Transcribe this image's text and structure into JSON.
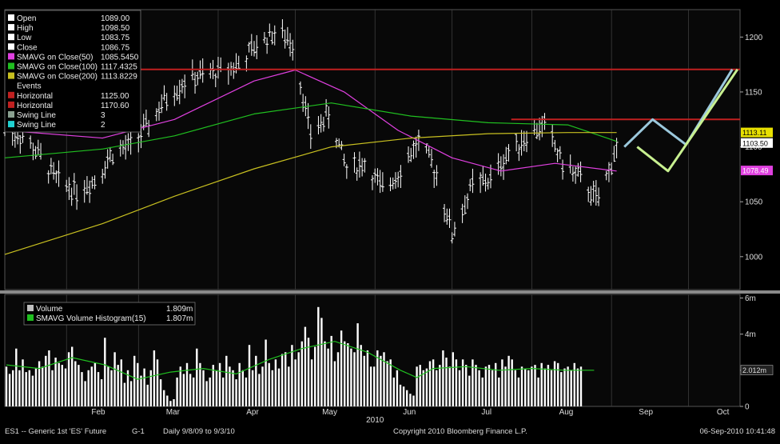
{
  "colors": {
    "price": "#ffffff",
    "sma50": "#e040e0",
    "sma100": "#20c020",
    "sma200": "#c8c020",
    "horizontal": "#c02020",
    "swing1": "#9bc8dc",
    "swing2": "#c8f090",
    "volume": "#ffffff",
    "volsma": "#20c020"
  },
  "legend": {
    "price_items": [
      {
        "label": "Open",
        "value": "1089.00",
        "color": "#ffffff"
      },
      {
        "label": "High",
        "value": "1098.50",
        "color": "#ffffff"
      },
      {
        "label": "Low",
        "value": "1083.75",
        "color": "#ffffff"
      },
      {
        "label": "Close",
        "value": "1086.75",
        "color": "#ffffff"
      },
      {
        "label": "SMAVG on Close(50)",
        "value": "1085.5450",
        "color": "#e040e0"
      },
      {
        "label": "SMAVG on Close(100)",
        "value": "1117.4325",
        "color": "#20c020"
      },
      {
        "label": "SMAVG on Close(200)",
        "value": "1113.8229",
        "color": "#c8c020"
      },
      {
        "label": "Events",
        "value": "",
        "color": ""
      },
      {
        "label": "Horizontal",
        "value": "1125.00",
        "color": "#c02020"
      },
      {
        "label": "Horizontal",
        "value": "1170.60",
        "color": "#c02020"
      },
      {
        "label": "Swing Line",
        "value": "3",
        "color": "#8aa090"
      },
      {
        "label": "Swing Line",
        "value": "2",
        "color": "#20d0d0"
      }
    ],
    "volume_items": [
      {
        "label": "Volume",
        "value": "1.809m",
        "color": "#c0c0c0"
      },
      {
        "label": "SMAVG Volume Histogram(15)",
        "value": "1.807m",
        "color": "#20c020"
      }
    ]
  },
  "price_tags": [
    {
      "value": 1113.11,
      "text": "1113.11",
      "bg": "#e8e000",
      "fg": "#000000"
    },
    {
      "value": 1103.5,
      "text": "1103.50",
      "bg": "#ffffff",
      "fg": "#000000"
    },
    {
      "value": 1078.49,
      "text": "1078.49",
      "bg": "#e040e0",
      "fg": "#ffffff"
    }
  ],
  "volume_tag": {
    "value": 2.012,
    "text": "2.012m"
  },
  "months": [
    "Feb",
    "Mar",
    "Apr",
    "May",
    "Jun",
    "Jul",
    "Aug",
    "Sep",
    "Oct"
  ],
  "year_label": "2010",
  "footer": {
    "left": "ES1 -- Generic 1st 'ES' Future",
    "code": "G-1",
    "range": "Daily  9/8/09 to 9/3/10",
    "copyright": "Copyright 2010 Bloomberg Finance L.P.",
    "date": "06-Sep-2010 10:41:48"
  },
  "chart_data": [
    {
      "type": "line",
      "y_axis": {
        "ticks": [
          1000,
          1050,
          1100,
          1150,
          1200
        ],
        "range": [
          970,
          1225
        ]
      },
      "x_axis": {
        "ticks": [
          "Feb",
          "Mar",
          "Apr",
          "May",
          "Jun",
          "Jul",
          "Aug",
          "Sep",
          "Oct"
        ],
        "range": [
          "2010-01-08",
          "2010-10-21"
        ]
      },
      "ohlc_close_path": [
        [
          "2010-01-08",
          1115
        ],
        [
          "2010-01-15",
          1110
        ],
        [
          "2010-01-22",
          1090
        ],
        [
          "2010-01-28",
          1070
        ],
        [
          "2010-02-05",
          1060
        ],
        [
          "2010-02-12",
          1070
        ],
        [
          "2010-02-19",
          1095
        ],
        [
          "2010-02-26",
          1100
        ],
        [
          "2010-03-05",
          1120
        ],
        [
          "2010-03-12",
          1145
        ],
        [
          "2010-03-19",
          1160
        ],
        [
          "2010-03-26",
          1165
        ],
        [
          "2010-04-01",
          1168
        ],
        [
          "2010-04-09",
          1175
        ],
        [
          "2010-04-16",
          1192
        ],
        [
          "2010-04-23",
          1205
        ],
        [
          "2010-04-30",
          1195
        ],
        [
          "2010-05-07",
          1110
        ],
        [
          "2010-05-14",
          1130
        ],
        [
          "2010-05-21",
          1080
        ],
        [
          "2010-05-28",
          1085
        ],
        [
          "2010-06-04",
          1060
        ],
        [
          "2010-06-11",
          1080
        ],
        [
          "2010-06-18",
          1105
        ],
        [
          "2010-06-25",
          1075
        ],
        [
          "2010-07-01",
          1020
        ],
        [
          "2010-07-09",
          1065
        ],
        [
          "2010-07-16",
          1070
        ],
        [
          "2010-07-23",
          1095
        ],
        [
          "2010-07-30",
          1110
        ],
        [
          "2010-08-06",
          1120
        ],
        [
          "2010-08-13",
          1085
        ],
        [
          "2010-08-20",
          1070
        ],
        [
          "2010-08-27",
          1050
        ],
        [
          "2010-09-03",
          1100
        ]
      ],
      "series": [
        {
          "name": "SMAVG on Close(50)",
          "points": [
            [
              "2010-01-08",
              1115
            ],
            [
              "2010-02-15",
              1108
            ],
            [
              "2010-03-15",
              1125
            ],
            [
              "2010-04-15",
              1160
            ],
            [
              "2010-05-01",
              1170
            ],
            [
              "2010-05-20",
              1150
            ],
            [
              "2010-06-10",
              1115
            ],
            [
              "2010-07-01",
              1090
            ],
            [
              "2010-07-20",
              1078
            ],
            [
              "2010-08-10",
              1085
            ],
            [
              "2010-09-03",
              1078
            ]
          ]
        },
        {
          "name": "SMAVG on Close(100)",
          "points": [
            [
              "2010-01-08",
              1090
            ],
            [
              "2010-02-15",
              1098
            ],
            [
              "2010-03-15",
              1110
            ],
            [
              "2010-04-15",
              1130
            ],
            [
              "2010-05-15",
              1140
            ],
            [
              "2010-06-15",
              1128
            ],
            [
              "2010-07-15",
              1122
            ],
            [
              "2010-08-15",
              1120
            ],
            [
              "2010-09-03",
              1105
            ]
          ]
        },
        {
          "name": "SMAVG on Close(200)",
          "points": [
            [
              "2010-01-08",
              1002
            ],
            [
              "2010-02-15",
              1030
            ],
            [
              "2010-03-15",
              1055
            ],
            [
              "2010-04-15",
              1080
            ],
            [
              "2010-05-15",
              1100
            ],
            [
              "2010-06-15",
              1108
            ],
            [
              "2010-07-15",
              1112
            ],
            [
              "2010-08-15",
              1113
            ],
            [
              "2010-09-03",
              1113
            ]
          ]
        },
        {
          "name": "Horizontal",
          "points": [
            [
              "2010-03-01",
              1170.6
            ],
            [
              "2010-10-21",
              1170.6
            ]
          ]
        },
        {
          "name": "Horizontal",
          "points": [
            [
              "2010-07-24",
              1125
            ],
            [
              "2010-10-21",
              1125
            ]
          ]
        },
        {
          "name": "Swing Line",
          "points": [
            [
              "2010-09-06",
              1100
            ],
            [
              "2010-09-17",
              1125
            ],
            [
              "2010-09-30",
              1102
            ],
            [
              "2010-10-18",
              1170.6
            ]
          ]
        },
        {
          "name": "Swing Line",
          "points": [
            [
              "2010-09-11",
              1100
            ],
            [
              "2010-09-23",
              1078
            ],
            [
              "2010-10-20",
              1170.6
            ]
          ]
        }
      ]
    },
    {
      "type": "bar",
      "y_axis": {
        "ticks": [
          "0",
          "2",
          "4m",
          "6m"
        ],
        "range": [
          0,
          6.2
        ]
      },
      "series": [
        {
          "name": "Volume",
          "values": [
            2.2,
            1.8,
            2.0,
            3.2,
            2.0,
            2.6,
            1.9,
            2.0,
            1.7,
            2.1,
            2.5,
            2.2,
            2.8,
            3.1,
            2.0,
            2.7,
            2.4,
            2.3,
            2.1,
            3.0,
            3.3,
            2.5,
            2.3,
            1.9,
            1.4,
            2.0,
            2.2,
            2.4,
            1.9,
            1.5,
            3.8,
            2.2,
            2.0,
            3.0,
            2.3,
            2.6,
            1.3,
            2.0,
            1.4,
            2.8,
            2.4,
            1.7,
            2.1,
            1.2,
            2.0,
            3.1,
            2.6,
            1.5,
            0.9,
            0.6,
            0.3,
            0.4,
            1.6,
            2.2,
            1.8,
            2.4,
            1.8,
            1.6,
            3.2,
            2.4,
            2.0,
            1.4,
            1.6,
            2.3,
            2.0,
            2.4,
            1.6,
            2.8,
            2.2,
            2.0,
            1.5,
            2.4,
            2.0,
            1.6,
            3.4,
            2.0,
            2.8,
            1.8,
            2.2,
            3.7,
            2.4,
            2.0,
            2.6,
            2.1,
            2.9,
            3.0,
            2.2,
            3.4,
            2.6,
            3.0,
            3.6,
            4.4,
            3.8,
            2.6,
            3.3,
            5.5,
            4.9,
            3.6,
            3.2,
            3.9,
            2.5,
            3.0,
            4.2,
            3.6,
            3.5,
            3.2,
            3.0,
            4.6,
            3.4,
            2.8,
            3.1,
            2.2,
            2.2,
            3.1,
            2.8,
            3.0,
            2.5,
            2.6,
            1.6,
            2.0,
            1.2,
            1.1,
            0.9,
            0.7,
            0.6,
            2.2,
            2.3,
            2.0,
            2.1,
            2.5,
            2.6,
            2.0,
            2.3,
            3.1,
            2.7,
            2.2,
            3.0,
            2.6,
            2.0,
            2.6,
            2.3,
            1.7,
            2.6,
            2.3,
            2.0,
            1.6,
            2.2,
            2.3,
            2.0,
            2.4,
            1.6,
            2.6,
            2.2,
            2.8,
            2.6,
            2.0,
            1.6,
            2.2,
            2.1,
            2.0,
            2.2,
            2.3,
            1.6,
            2.4,
            2.1,
            2.3,
            2.0,
            2.5,
            2.4,
            1.9,
            2.1,
            2.2,
            2.0,
            2.4,
            2.1,
            2.2
          ]
        },
        {
          "name": "SMAVG Volume Histogram(15)",
          "points": [
            [
              0,
              2.3
            ],
            [
              10,
              2.1
            ],
            [
              20,
              2.7
            ],
            [
              30,
              2.3
            ],
            [
              40,
              1.5
            ],
            [
              50,
              1.9
            ],
            [
              60,
              2.1
            ],
            [
              70,
              1.8
            ],
            [
              80,
              2.6
            ],
            [
              90,
              3.2
            ],
            [
              100,
              3.6
            ],
            [
              110,
              3.0
            ],
            [
              120,
              2.0
            ],
            [
              125,
              1.6
            ],
            [
              130,
              2.1
            ],
            [
              140,
              2.2
            ],
            [
              150,
              2.0
            ],
            [
              160,
              2.1
            ],
            [
              170,
              2.0
            ],
            [
              179,
              2.0
            ]
          ]
        }
      ]
    }
  ]
}
